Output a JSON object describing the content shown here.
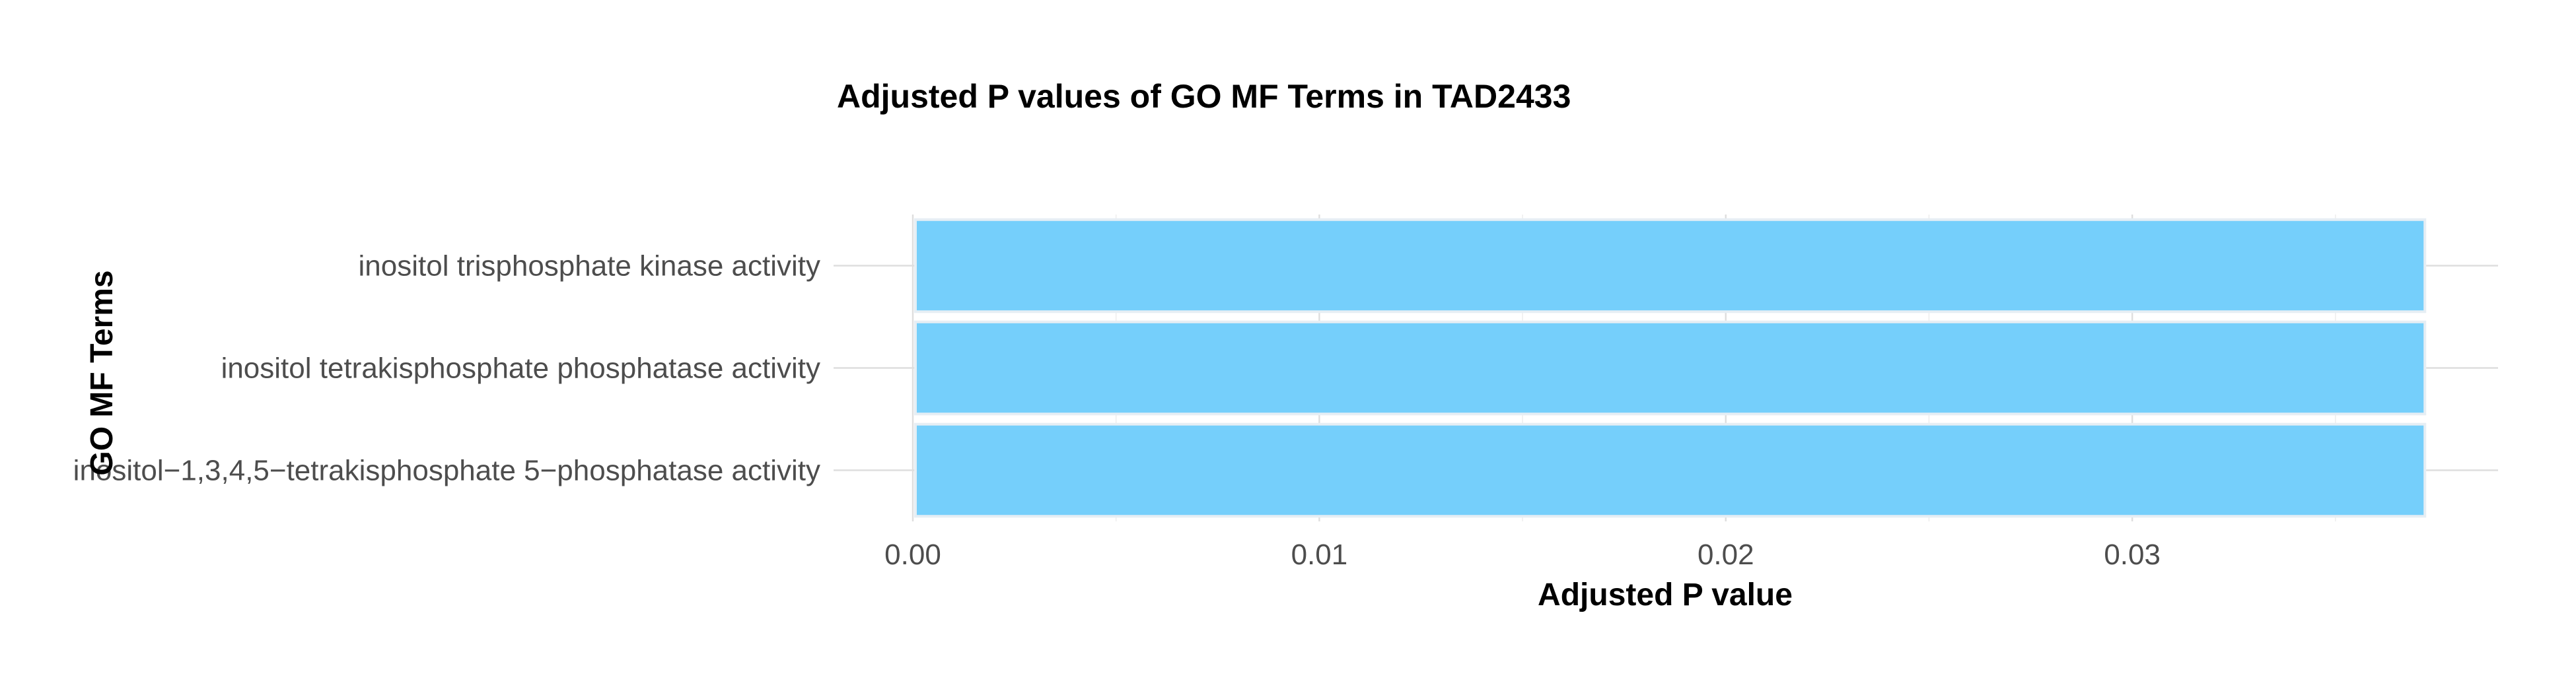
{
  "chart_data": {
    "type": "bar",
    "orientation": "horizontal",
    "title": "Adjusted P values of GO MF Terms in TAD2433",
    "xlabel": "Adjusted P value",
    "ylabel": "GO MF Terms",
    "categories": [
      "inositol trisphosphate kinase activity",
      "inositol tetrakisphosphate phosphatase activity",
      "inositol−1,3,4,5−tetrakisphosphate 5−phosphatase activity"
    ],
    "values": [
      0.0372,
      0.0372,
      0.0372
    ],
    "xlim": [
      0,
      0.039
    ],
    "xticks": [
      0.0,
      0.01,
      0.02,
      0.03
    ],
    "xtick_labels": [
      "0.00",
      "0.01",
      "0.02",
      "0.03"
    ],
    "grid": true,
    "legend": "none",
    "colors": {
      "bar_fill": "#75cffb",
      "bar_outline": "#e6eef4",
      "grid_major": "#dedede",
      "grid_minor": "#ececec",
      "text": "#4d4d4d",
      "title": "#000000"
    }
  }
}
